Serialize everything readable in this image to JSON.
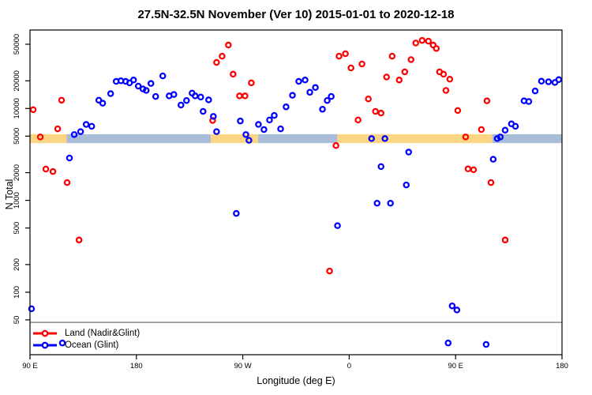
{
  "title": "27.5N-32.5N November (Ver 10)   2015-01-01 to 2020-12-18",
  "legend": {
    "items": [
      {
        "label": "Land (Nadir&Glint)",
        "color": "#ff0000"
      },
      {
        "label": "Ocean (Glint)",
        "color": "#0000ff"
      }
    ]
  },
  "chart_data": {
    "type": "scatter",
    "title": "27.5N-32.5N November (Ver 10)   2015-01-01 to 2020-12-18",
    "xlabel": "Longitude (deg E)",
    "ylabel": "N Total",
    "x_axis": {
      "description": "longitude axis wrapping 450 degrees starting at 90E; positions are degrees east of 90E",
      "span_deg": 450,
      "ticks": [
        {
          "pos": 0,
          "label": "90 E"
        },
        {
          "pos": 90,
          "label": "180"
        },
        {
          "pos": 180,
          "label": "90 W"
        },
        {
          "pos": 270,
          "label": "0"
        },
        {
          "pos": 360,
          "label": "90 E"
        },
        {
          "pos": 450,
          "label": "180"
        }
      ]
    },
    "y_axis": {
      "scale": "log",
      "ticks": [
        50,
        100,
        200,
        500,
        1000,
        2000,
        5000,
        10000,
        20000,
        50000
      ],
      "range": [
        21,
        71000
      ],
      "grid": false
    },
    "reference_line": {
      "value": 47,
      "color": "#7f7f7f"
    },
    "surface_band": {
      "value_range": [
        4200,
        5250
      ],
      "land_color": "#fbd682",
      "ocean_color": "#a9bdd9",
      "segments": [
        {
          "surface": "land",
          "from": 0,
          "to": 31
        },
        {
          "surface": "ocean",
          "from": 31,
          "to": 153
        },
        {
          "surface": "land",
          "from": 153,
          "to": 193
        },
        {
          "surface": "ocean",
          "from": 193,
          "to": 260
        },
        {
          "surface": "land",
          "from": 260,
          "to": 391
        },
        {
          "surface": "ocean",
          "from": 391,
          "to": 450
        }
      ]
    },
    "series": [
      {
        "name": "Land (Nadir&Glint)",
        "color": "#ff0000",
        "points": [
          [
            2.7,
            9700
          ],
          [
            8.7,
            4900
          ],
          [
            13.4,
            2190
          ],
          [
            19.4,
            2060
          ],
          [
            23.4,
            6000
          ],
          [
            26.7,
            12300
          ],
          [
            31.4,
            1560
          ],
          [
            41.5,
            370
          ],
          [
            154.5,
            7400
          ],
          [
            157.8,
            31700
          ],
          [
            162.5,
            37100
          ],
          [
            167.8,
            49000
          ],
          [
            171.8,
            23600
          ],
          [
            177.2,
            13700
          ],
          [
            181.9,
            13700
          ],
          [
            187.2,
            19000
          ],
          [
            253.4,
            170
          ],
          [
            258.8,
            3950
          ],
          [
            261.4,
            37100
          ],
          [
            266.8,
            39400
          ],
          [
            271.5,
            27600
          ],
          [
            277.5,
            7500
          ],
          [
            280.8,
            30500
          ],
          [
            286.2,
            12700
          ],
          [
            292.2,
            9300
          ],
          [
            296.9,
            8900
          ],
          [
            301.6,
            22000
          ],
          [
            306.3,
            37100
          ],
          [
            312.3,
            20400
          ],
          [
            317.0,
            25000
          ],
          [
            322.3,
            34000
          ],
          [
            326.3,
            51500
          ],
          [
            331.7,
            55000
          ],
          [
            337.0,
            54000
          ],
          [
            341.0,
            49000
          ],
          [
            343.7,
            45000
          ],
          [
            346.4,
            25000
          ],
          [
            349.8,
            23600
          ],
          [
            351.8,
            15700
          ],
          [
            355.1,
            20800
          ],
          [
            361.8,
            9500
          ],
          [
            368.5,
            4900
          ],
          [
            370.5,
            2200
          ],
          [
            375.2,
            2150
          ],
          [
            381.8,
            5900
          ],
          [
            386.5,
            12100
          ],
          [
            389.9,
            1560
          ],
          [
            401.9,
            370
          ]
        ]
      },
      {
        "name": "Ocean (Glint)",
        "color": "#0000ff",
        "points": [
          [
            1.3,
            66
          ],
          [
            27.4,
            28
          ],
          [
            33.4,
            2890
          ],
          [
            37.4,
            5200
          ],
          [
            42.8,
            5600
          ],
          [
            47.5,
            6700
          ],
          [
            52.2,
            6400
          ],
          [
            58.2,
            12300
          ],
          [
            61.5,
            11400
          ],
          [
            68.2,
            14500
          ],
          [
            72.9,
            19700
          ],
          [
            76.9,
            20000
          ],
          [
            80.9,
            19700
          ],
          [
            84.2,
            19000
          ],
          [
            87.6,
            20400
          ],
          [
            91.6,
            17500
          ],
          [
            95.6,
            16300
          ],
          [
            98.3,
            15700
          ],
          [
            102.3,
            18700
          ],
          [
            106.3,
            13500
          ],
          [
            112.3,
            22600
          ],
          [
            117.7,
            13700
          ],
          [
            121.7,
            14200
          ],
          [
            127.7,
            10900
          ],
          [
            132.4,
            12200
          ],
          [
            137.1,
            14700
          ],
          [
            139.7,
            13700
          ],
          [
            144.4,
            13300
          ],
          [
            146.4,
            9300
          ],
          [
            151.1,
            12400
          ],
          [
            155.1,
            8200
          ],
          [
            157.8,
            5600
          ],
          [
            174.5,
            720
          ],
          [
            177.9,
            7300
          ],
          [
            182.6,
            5200
          ],
          [
            185.2,
            4500
          ],
          [
            193.2,
            6700
          ],
          [
            197.9,
            5900
          ],
          [
            202.6,
            7500
          ],
          [
            206.6,
            8400
          ],
          [
            212.0,
            6000
          ],
          [
            216.6,
            10400
          ],
          [
            222.0,
            13900
          ],
          [
            227.3,
            19700
          ],
          [
            232.7,
            20400
          ],
          [
            236.7,
            15000
          ],
          [
            241.4,
            16900
          ],
          [
            247.4,
            9800
          ],
          [
            251.4,
            12200
          ],
          [
            254.8,
            13500
          ],
          [
            260.1,
            530
          ],
          [
            288.9,
            4700
          ],
          [
            293.6,
            930
          ],
          [
            296.9,
            2330
          ],
          [
            300.2,
            4700
          ],
          [
            304.9,
            930
          ],
          [
            318.3,
            1470
          ],
          [
            320.3,
            3350
          ],
          [
            353.7,
            28
          ],
          [
            357.1,
            71
          ],
          [
            361.1,
            64
          ],
          [
            385.8,
            27
          ],
          [
            391.8,
            2800
          ],
          [
            395.2,
            4700
          ],
          [
            397.8,
            4900
          ],
          [
            401.9,
            5800
          ],
          [
            407.2,
            6800
          ],
          [
            410.6,
            6400
          ],
          [
            417.9,
            12100
          ],
          [
            421.9,
            11900
          ],
          [
            427.3,
            15500
          ],
          [
            432.6,
            19800
          ],
          [
            438.6,
            19500
          ],
          [
            444.0,
            19200
          ],
          [
            447.3,
            20600
          ]
        ]
      }
    ]
  }
}
